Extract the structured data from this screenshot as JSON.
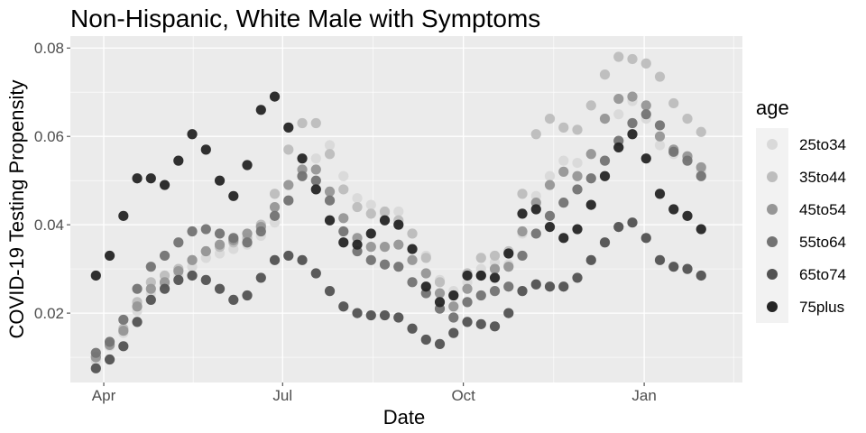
{
  "chart_data": {
    "type": "scatter",
    "title": "Non-Hispanic, White Male with Symptoms",
    "xlabel": "Date",
    "ylabel": "COVID-19 Testing Propensity",
    "x_axis": {
      "type": "date",
      "range": [
        "2020-03-15",
        "2021-02-20"
      ],
      "ticks": [
        {
          "date": "2020-04-01",
          "label": "Apr"
        },
        {
          "date": "2020-07-01",
          "label": "Jul"
        },
        {
          "date": "2020-10-01",
          "label": "Oct"
        },
        {
          "date": "2021-01-01",
          "label": "Jan"
        }
      ]
    },
    "y_axis": {
      "range": [
        0.0043,
        0.0827
      ],
      "ticks": [
        {
          "value": 0.02,
          "label": "0.02"
        },
        {
          "value": 0.04,
          "label": "0.04"
        },
        {
          "value": 0.06,
          "label": "0.06"
        },
        {
          "value": 0.08,
          "label": "0.08"
        }
      ]
    },
    "grid": true,
    "legend": {
      "title": "age",
      "position": "right"
    },
    "x": [
      "2020-03-28",
      "2020-04-04",
      "2020-04-11",
      "2020-04-18",
      "2020-04-25",
      "2020-05-02",
      "2020-05-09",
      "2020-05-16",
      "2020-05-23",
      "2020-05-30",
      "2020-06-06",
      "2020-06-13",
      "2020-06-20",
      "2020-06-27",
      "2020-07-04",
      "2020-07-11",
      "2020-07-18",
      "2020-07-25",
      "2020-08-01",
      "2020-08-08",
      "2020-08-15",
      "2020-08-22",
      "2020-08-29",
      "2020-09-05",
      "2020-09-12",
      "2020-09-19",
      "2020-09-26",
      "2020-10-03",
      "2020-10-10",
      "2020-10-17",
      "2020-10-24",
      "2020-10-31",
      "2020-11-07",
      "2020-11-14",
      "2020-11-21",
      "2020-11-28",
      "2020-12-05",
      "2020-12-12",
      "2020-12-19",
      "2020-12-26",
      "2021-01-02",
      "2021-01-09",
      "2021-01-16",
      "2021-01-23",
      "2021-01-30"
    ],
    "series": [
      {
        "name": "25to34",
        "color": "#d9d9d9",
        "values": [
          0.0092,
          0.0125,
          0.0155,
          0.0205,
          0.0245,
          0.0265,
          0.0285,
          0.0305,
          0.0325,
          0.0335,
          0.0345,
          0.0355,
          0.0375,
          0.0405,
          0.0455,
          0.051,
          0.055,
          0.058,
          0.051,
          0.046,
          0.0445,
          0.0425,
          0.043,
          0.038,
          0.033,
          0.0275,
          0.025,
          0.027,
          0.03,
          0.0315,
          0.031,
          0.038,
          0.0465,
          0.051,
          0.0545,
          0.054,
          0.056,
          0.064,
          0.065,
          0.068,
          0.064,
          0.058,
          0.056,
          0.055,
          0.052
        ]
      },
      {
        "name": "35to44",
        "color": "#bdbdbd",
        "values": [
          0.0102,
          0.013,
          0.0165,
          0.0225,
          0.027,
          0.0285,
          0.03,
          0.032,
          0.034,
          0.035,
          0.036,
          0.037,
          0.04,
          0.047,
          0.057,
          0.063,
          0.063,
          0.056,
          0.048,
          0.044,
          0.0425,
          0.043,
          0.041,
          0.038,
          0.0325,
          0.027,
          0.024,
          0.029,
          0.0325,
          0.033,
          0.034,
          0.047,
          0.0605,
          0.064,
          0.062,
          0.0615,
          0.067,
          0.074,
          0.078,
          0.0775,
          0.0765,
          0.0735,
          0.0675,
          0.064,
          0.061
        ]
      },
      {
        "name": "45to54",
        "color": "#969696",
        "values": [
          0.01,
          0.0128,
          0.016,
          0.0215,
          0.0255,
          0.027,
          0.0295,
          0.032,
          0.034,
          0.0355,
          0.0365,
          0.038,
          0.0395,
          0.044,
          0.049,
          0.0525,
          0.0525,
          0.0475,
          0.0415,
          0.037,
          0.035,
          0.035,
          0.0355,
          0.032,
          0.029,
          0.0245,
          0.0215,
          0.0255,
          0.0285,
          0.03,
          0.0305,
          0.0385,
          0.045,
          0.049,
          0.052,
          0.051,
          0.056,
          0.064,
          0.0685,
          0.069,
          0.067,
          0.06,
          0.057,
          0.0555,
          0.053
        ]
      },
      {
        "name": "55to64",
        "color": "#737373",
        "values": [
          0.011,
          0.0135,
          0.0185,
          0.0255,
          0.0305,
          0.033,
          0.036,
          0.0385,
          0.039,
          0.038,
          0.037,
          0.036,
          0.0385,
          0.042,
          0.0455,
          0.051,
          0.05,
          0.0455,
          0.0385,
          0.034,
          0.032,
          0.031,
          0.0305,
          0.027,
          0.0245,
          0.021,
          0.019,
          0.0225,
          0.024,
          0.025,
          0.026,
          0.033,
          0.038,
          0.042,
          0.045,
          0.048,
          0.0505,
          0.0545,
          0.059,
          0.063,
          0.065,
          0.0625,
          0.0565,
          0.0545,
          0.051
        ]
      },
      {
        "name": "65to74",
        "color": "#525252",
        "values": [
          0.0075,
          0.0095,
          0.0125,
          0.018,
          0.023,
          0.0255,
          0.0275,
          0.0285,
          0.0275,
          0.0255,
          0.023,
          0.024,
          0.028,
          0.032,
          0.033,
          0.032,
          0.029,
          0.025,
          0.0215,
          0.02,
          0.0195,
          0.0195,
          0.019,
          0.0165,
          0.014,
          0.013,
          0.0155,
          0.018,
          0.0175,
          0.017,
          0.02,
          0.025,
          0.0265,
          0.026,
          0.026,
          0.028,
          0.032,
          0.036,
          0.0395,
          0.0405,
          0.037,
          0.032,
          0.0305,
          0.03,
          0.0285
        ]
      },
      {
        "name": "75plus",
        "color": "#252525",
        "values": [
          0.0285,
          0.033,
          0.042,
          0.0505,
          0.0505,
          0.049,
          0.0545,
          0.0605,
          0.057,
          0.05,
          0.0465,
          0.0535,
          0.066,
          0.069,
          0.062,
          0.055,
          0.048,
          0.041,
          0.036,
          0.0355,
          0.038,
          0.041,
          0.04,
          0.0345,
          0.026,
          0.0225,
          0.024,
          0.0285,
          0.0285,
          0.028,
          0.0335,
          0.0425,
          0.0435,
          0.0395,
          0.037,
          0.039,
          0.0445,
          0.051,
          0.0575,
          0.0605,
          0.055,
          0.047,
          0.0435,
          0.042,
          0.039
        ]
      }
    ]
  }
}
